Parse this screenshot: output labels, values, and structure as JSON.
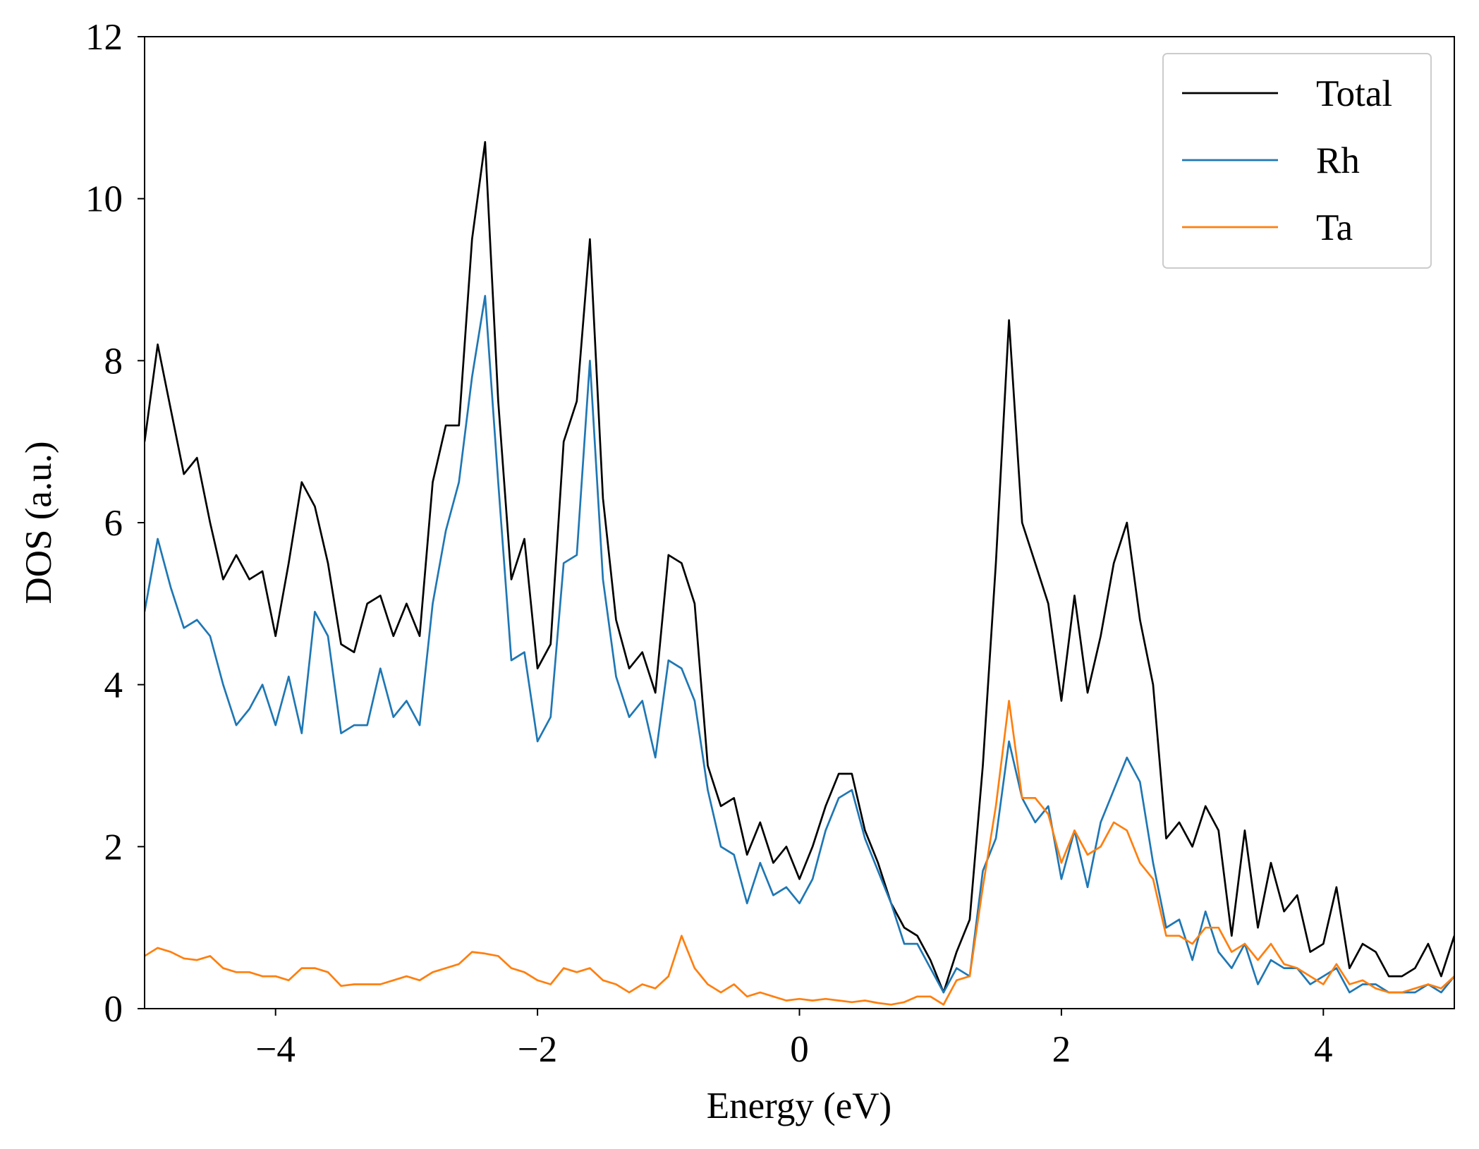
{
  "chart_data": {
    "type": "line",
    "xlabel": "Energy (eV)",
    "ylabel": "DOS (a.u.)",
    "xlim": [
      -5,
      5
    ],
    "ylim": [
      0,
      12
    ],
    "xticks": [
      {
        "value": -4,
        "label": "−4"
      },
      {
        "value": -2,
        "label": "−2"
      },
      0,
      2,
      4
    ],
    "yticks": [
      0,
      2,
      4,
      6,
      8,
      10,
      12
    ],
    "legend": "upper right",
    "x": [
      -5.0,
      -4.9,
      -4.8,
      -4.7,
      -4.6,
      -4.5,
      -4.4,
      -4.3,
      -4.2,
      -4.1,
      -4.0,
      -3.9,
      -3.8,
      -3.7,
      -3.6,
      -3.5,
      -3.4,
      -3.3,
      -3.2,
      -3.1,
      -3.0,
      -2.9,
      -2.8,
      -2.7,
      -2.6,
      -2.5,
      -2.4,
      -2.3,
      -2.2,
      -2.1,
      -2.0,
      -1.9,
      -1.8,
      -1.7,
      -1.6,
      -1.5,
      -1.4,
      -1.3,
      -1.2,
      -1.1,
      -1.0,
      -0.9,
      -0.8,
      -0.7,
      -0.6,
      -0.5,
      -0.4,
      -0.3,
      -0.2,
      -0.1,
      0.0,
      0.1,
      0.2,
      0.3,
      0.4,
      0.5,
      0.6,
      0.7,
      0.8,
      0.9,
      1.0,
      1.1,
      1.2,
      1.3,
      1.4,
      1.5,
      1.6,
      1.7,
      1.8,
      1.9,
      2.0,
      2.1,
      2.2,
      2.3,
      2.4,
      2.5,
      2.6,
      2.7,
      2.8,
      2.9,
      3.0,
      3.1,
      3.2,
      3.3,
      3.4,
      3.5,
      3.6,
      3.7,
      3.8,
      3.9,
      4.0,
      4.1,
      4.2,
      4.3,
      4.4,
      4.5,
      4.6,
      4.7,
      4.8,
      4.9,
      5.0
    ],
    "series": [
      {
        "name": "Total",
        "color": "#000000",
        "values": [
          7.0,
          8.2,
          7.4,
          6.6,
          6.8,
          6.0,
          5.3,
          5.6,
          5.3,
          5.4,
          4.6,
          5.5,
          6.5,
          6.2,
          5.5,
          4.5,
          4.4,
          5.0,
          5.1,
          4.6,
          5.0,
          4.6,
          6.5,
          7.2,
          7.2,
          9.5,
          10.7,
          7.5,
          5.3,
          5.8,
          4.2,
          4.5,
          7.0,
          7.5,
          9.5,
          6.3,
          4.8,
          4.2,
          4.4,
          3.9,
          5.6,
          5.5,
          5.0,
          3.0,
          2.5,
          2.6,
          1.9,
          2.3,
          1.8,
          2.0,
          1.6,
          2.0,
          2.5,
          2.9,
          2.9,
          2.2,
          1.8,
          1.3,
          1.0,
          0.9,
          0.6,
          0.2,
          0.7,
          1.1,
          3.0,
          5.5,
          8.5,
          6.0,
          5.5,
          5.0,
          3.8,
          5.1,
          3.9,
          4.6,
          5.5,
          6.0,
          4.8,
          4.0,
          2.1,
          2.3,
          2.0,
          2.5,
          2.2,
          0.9,
          2.2,
          1.0,
          1.8,
          1.2,
          1.4,
          0.7,
          0.8,
          1.5,
          0.5,
          0.8,
          0.7,
          0.4,
          0.4,
          0.5,
          0.8,
          0.4,
          0.9
        ]
      },
      {
        "name": "Rh",
        "color": "#1f77b4",
        "values": [
          4.9,
          5.8,
          5.2,
          4.7,
          4.8,
          4.6,
          4.0,
          3.5,
          3.7,
          4.0,
          3.5,
          4.1,
          3.4,
          4.9,
          4.6,
          3.4,
          3.5,
          3.5,
          4.2,
          3.6,
          3.8,
          3.5,
          5.0,
          5.9,
          6.5,
          7.8,
          8.8,
          6.5,
          4.3,
          4.4,
          3.3,
          3.6,
          5.5,
          5.6,
          8.0,
          5.3,
          4.1,
          3.6,
          3.8,
          3.1,
          4.3,
          4.2,
          3.8,
          2.7,
          2.0,
          1.9,
          1.3,
          1.8,
          1.4,
          1.5,
          1.3,
          1.6,
          2.2,
          2.6,
          2.7,
          2.1,
          1.7,
          1.3,
          0.8,
          0.8,
          0.5,
          0.2,
          0.5,
          0.4,
          1.7,
          2.1,
          3.3,
          2.6,
          2.3,
          2.5,
          1.6,
          2.2,
          1.5,
          2.3,
          2.7,
          3.1,
          2.8,
          1.8,
          1.0,
          1.1,
          0.6,
          1.2,
          0.7,
          0.5,
          0.8,
          0.3,
          0.6,
          0.5,
          0.5,
          0.3,
          0.4,
          0.5,
          0.2,
          0.3,
          0.3,
          0.2,
          0.2,
          0.2,
          0.3,
          0.2,
          0.4
        ]
      },
      {
        "name": "Ta",
        "color": "#ff7f0e",
        "values": [
          0.65,
          0.75,
          0.7,
          0.62,
          0.6,
          0.65,
          0.5,
          0.45,
          0.45,
          0.4,
          0.4,
          0.35,
          0.5,
          0.5,
          0.45,
          0.28,
          0.3,
          0.3,
          0.3,
          0.35,
          0.4,
          0.35,
          0.45,
          0.5,
          0.55,
          0.7,
          0.68,
          0.65,
          0.5,
          0.45,
          0.35,
          0.3,
          0.5,
          0.45,
          0.5,
          0.35,
          0.3,
          0.2,
          0.3,
          0.25,
          0.4,
          0.9,
          0.5,
          0.3,
          0.2,
          0.3,
          0.15,
          0.2,
          0.15,
          0.1,
          0.12,
          0.1,
          0.12,
          0.1,
          0.08,
          0.1,
          0.07,
          0.05,
          0.08,
          0.15,
          0.15,
          0.05,
          0.35,
          0.4,
          1.5,
          2.5,
          3.8,
          2.6,
          2.6,
          2.4,
          1.8,
          2.2,
          1.9,
          2.0,
          2.3,
          2.2,
          1.8,
          1.6,
          0.9,
          0.9,
          0.8,
          1.0,
          1.0,
          0.7,
          0.8,
          0.6,
          0.8,
          0.55,
          0.5,
          0.4,
          0.3,
          0.55,
          0.3,
          0.35,
          0.25,
          0.2,
          0.2,
          0.25,
          0.3,
          0.25,
          0.4
        ]
      }
    ]
  }
}
